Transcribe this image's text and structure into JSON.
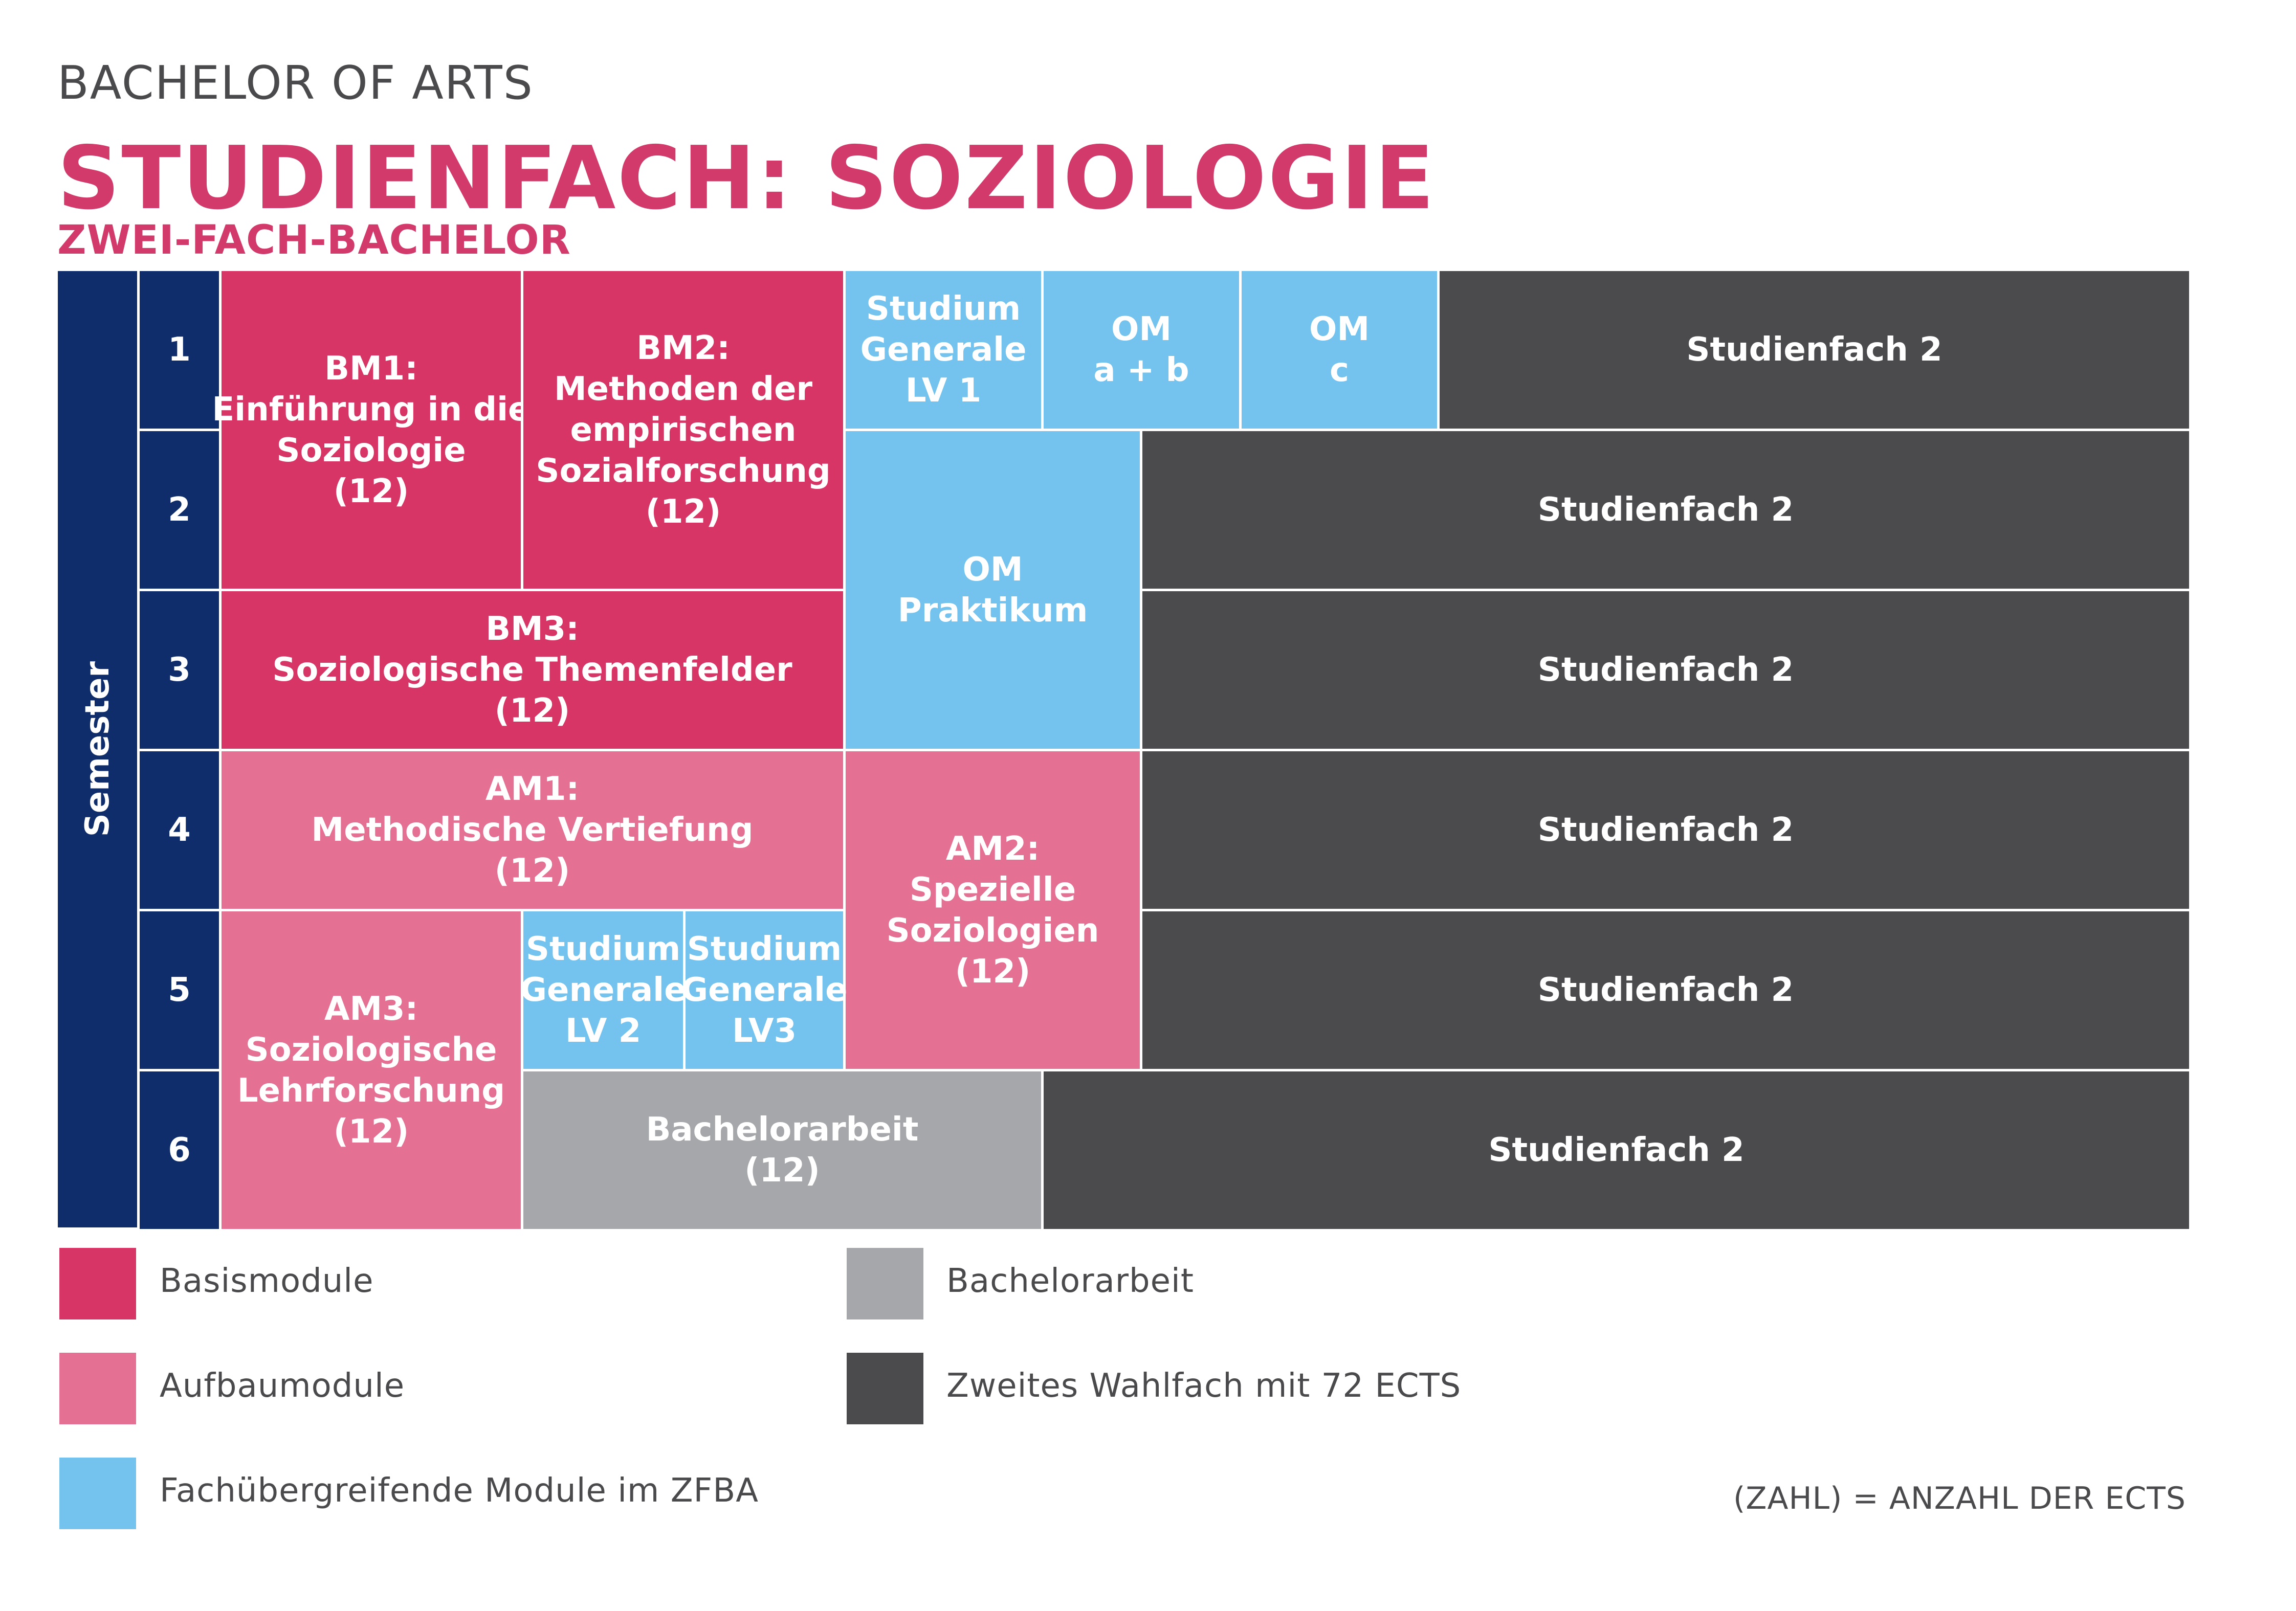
{
  "header": {
    "program": "BACHELOR OF ARTS",
    "title": "STUDIENFACH: SOZIOLOGIE",
    "subtitle": "ZWEI-FACH-BACHELOR"
  },
  "semester_axis_label": "Semester",
  "semesters": [
    "1",
    "2",
    "3",
    "4",
    "5",
    "6"
  ],
  "modules": {
    "bm1": [
      "BM1:",
      "Einführung in die",
      "Soziologie",
      "(12)"
    ],
    "bm2": [
      "BM2:",
      "Methoden der",
      "empirischen",
      "Sozialforschung",
      "(12)"
    ],
    "bm3": [
      "BM3:",
      "Soziologische Themenfelder",
      "(12)"
    ],
    "am1": [
      "AM1:",
      "Methodische Vertiefung",
      "(12)"
    ],
    "am2": [
      "AM2:",
      "Spezielle",
      "Soziologien",
      "(12)"
    ],
    "am3": [
      "AM3:",
      "Soziologische",
      "Lehrforschung",
      "(12)"
    ],
    "sg1": [
      "Studium",
      "Generale",
      "LV 1"
    ],
    "sg2": [
      "Studium",
      "Generale",
      "LV 2"
    ],
    "sg3": [
      "Studium",
      "Generale",
      "LV3"
    ],
    "om_ab": [
      "OM",
      "a + b"
    ],
    "om_c": [
      "OM",
      "c"
    ],
    "om_praktikum": [
      "OM",
      "Praktikum"
    ],
    "bachelorarbeit": [
      "Bachelorarbeit",
      "(12)"
    ],
    "studienfach2": "Studienfach 2"
  },
  "legend": {
    "basis": "Basismodule",
    "aufbau": "Aufbaumodule",
    "zfba": "Fachübergreifende Module im ZFBA",
    "thesis": "Bachelorarbeit",
    "second": "Zweites Wahlfach mit 72 ECTS"
  },
  "note": "(ZAHL) = ANZAHL DER ECTS",
  "colors": {
    "navy": "#0f2d6b",
    "basis": "#d63566",
    "aufbau": "#e47194",
    "zfba": "#73c3ee",
    "thesis": "#a6a7aa",
    "second": "#4b4b4e",
    "title": "#d23a6b"
  }
}
